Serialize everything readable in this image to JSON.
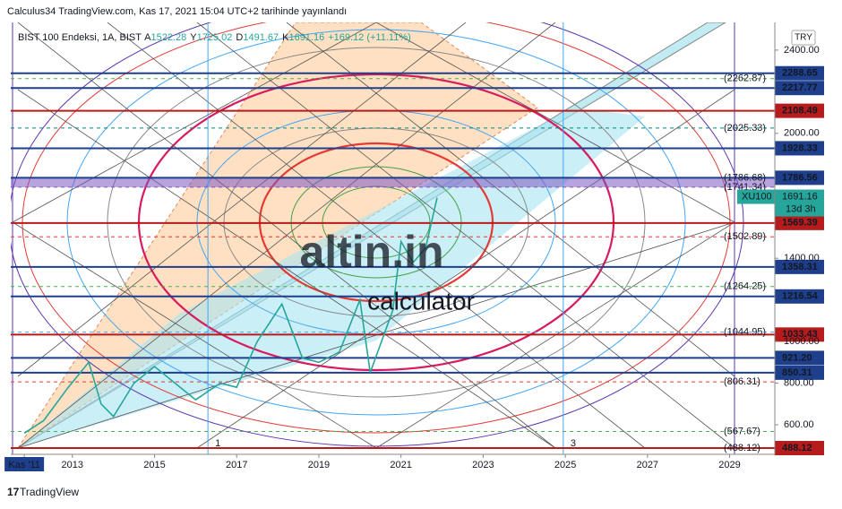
{
  "header": {
    "published": "Calculus34 TradingView.com, Kas 17, 2021 15:04 UTC+2 tarihinde yayınlandı",
    "brand": "TradingView"
  },
  "chart_data": {
    "type": "line",
    "symbol": "BIST 100 Endeksi, 1A, BIST",
    "ohlc": [
      {
        "prefix": "A",
        "value": 1522.28
      },
      {
        "prefix": "Y",
        "value": 1725.02
      },
      {
        "prefix": "D",
        "value": 1491.67
      },
      {
        "prefix": "K",
        "value": 1691.16
      }
    ],
    "change": "+169.12 (+11.11%)",
    "currency": "TRY",
    "watermark": [
      "altin.in",
      "calculator"
    ],
    "cycle_markers": [
      {
        "value": 2016.3,
        "label": "1"
      },
      {
        "value": 2024.95,
        "label": "3"
      }
    ],
    "series": [
      {
        "name": "XU100",
        "color": "#26a69a",
        "x": [
          2011.83,
          2012.3,
          2012.9,
          2013.4,
          2013.7,
          2014.0,
          2014.5,
          2015.0,
          2015.5,
          2016.0,
          2016.6,
          2017.0,
          2017.5,
          2018.1,
          2018.6,
          2019.0,
          2019.5,
          2020.0,
          2020.25,
          2020.8,
          2021.0,
          2021.3,
          2021.6,
          2021.88
        ],
        "values": [
          560,
          620,
          780,
          900,
          700,
          640,
          800,
          880,
          800,
          720,
          800,
          780,
          1000,
          1180,
          920,
          900,
          950,
          1200,
          850,
          1150,
          1480,
          1380,
          1450,
          1691.16
        ]
      }
    ],
    "last": {
      "symbol": "XU100",
      "value": 1691.16,
      "label": "1691.16",
      "countdown": "13d 3h"
    },
    "levels": [
      {
        "value": 2288.65,
        "label": "2288.65",
        "color": "#1e3f8c"
      },
      {
        "value": 2217.77,
        "label": "2217.77",
        "color": "#1e3f8c"
      },
      {
        "value": 2108.49,
        "label": "2108.49",
        "color": "#b71c1c"
      },
      {
        "value": 1928.33,
        "label": "1928.33",
        "color": "#1e3f8c"
      },
      {
        "value": 1786.56,
        "label": "1786.56",
        "color": "#1e3f8c"
      },
      {
        "value": 1569.39,
        "label": "1569.39",
        "color": "#b71c1c"
      },
      {
        "value": 1358.31,
        "label": "1358.31",
        "color": "#1e3f8c"
      },
      {
        "value": 1216.54,
        "label": "1216.54",
        "color": "#1e3f8c"
      },
      {
        "value": 1033.43,
        "label": "1033.43",
        "color": "#b71c1c"
      },
      {
        "value": 921.2,
        "label": "921.20",
        "color": "#1e3f8c"
      },
      {
        "value": 850.31,
        "label": "850.31",
        "color": "#1e3f8c"
      },
      {
        "value": 488.12,
        "label": "488.12",
        "color": "#b71c1c"
      }
    ],
    "fib_levels": [
      {
        "value": 2262.87,
        "label": "(2262.87)",
        "color": "#4caf50"
      },
      {
        "value": 2025.33,
        "label": "(2025.33)",
        "color": "#00897b"
      },
      {
        "value": 1786.68,
        "label": "(1786.68)",
        "color": "#e53935"
      },
      {
        "value": 1741.34,
        "label": "(1741.34)",
        "color": "#7e57c2"
      },
      {
        "value": 1502.89,
        "label": "(1502.89)",
        "color": "#e53935"
      },
      {
        "value": 1264.25,
        "label": "(1264.25)",
        "color": "#4caf50"
      },
      {
        "value": 1044.95,
        "label": "(1044.95)",
        "color": "#42a5f5"
      },
      {
        "value": 806.31,
        "label": "(806.31)",
        "color": "#e53935"
      },
      {
        "value": 567.67,
        "label": "(567.67)",
        "color": "#4caf50"
      },
      {
        "value": 488.12,
        "label": "(488.12)",
        "color": "#42a5f5"
      }
    ],
    "xlim": [
      2011.5,
      2030.1
    ],
    "ylim": [
      458,
      2533
    ],
    "xticks": [
      {
        "value": 2011.83,
        "label": "Kas '11"
      },
      2013,
      2015,
      2017,
      2019,
      2021,
      2023,
      2025,
      2027,
      2029
    ],
    "yticks": [
      {
        "value": 2400,
        "label": "2400.00"
      },
      {
        "value": 2000,
        "label": "2000.00"
      },
      {
        "value": 1400,
        "label": "1400.00"
      },
      {
        "value": 1000,
        "label": "1000.00"
      },
      {
        "value": 800,
        "label": "800.00"
      },
      {
        "value": 600,
        "label": "600.00"
      }
    ]
  }
}
